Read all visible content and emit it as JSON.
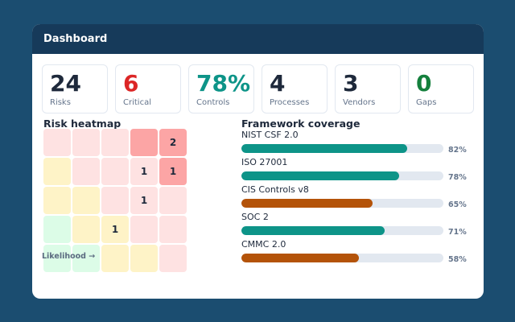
{
  "header": {
    "title": "Dashboard"
  },
  "stats": [
    {
      "value": "24",
      "label": "Risks",
      "color": "#1e293b"
    },
    {
      "value": "6",
      "label": "Critical",
      "color": "#dc2626"
    },
    {
      "value": "78%",
      "label": "Controls",
      "color": "#0d9488"
    },
    {
      "value": "4",
      "label": "Processes",
      "color": "#1e293b"
    },
    {
      "value": "3",
      "label": "Vendors",
      "color": "#1e293b"
    },
    {
      "value": "0",
      "label": "Gaps",
      "color": "#15803d"
    }
  ],
  "heatmap": {
    "title": "Risk heatmap",
    "axis_label": "Likelihood →",
    "colors": {
      "G": "#dcfce7",
      "Y": "#fef3c7",
      "P": "#fee2e2",
      "R": "#fca5a5"
    },
    "rows": [
      [
        [
          "P",
          ""
        ],
        [
          "P",
          ""
        ],
        [
          "P",
          ""
        ],
        [
          "R",
          ""
        ],
        [
          "R",
          "2"
        ]
      ],
      [
        [
          "Y",
          ""
        ],
        [
          "P",
          ""
        ],
        [
          "P",
          ""
        ],
        [
          "P",
          "1"
        ],
        [
          "R",
          "1"
        ]
      ],
      [
        [
          "Y",
          ""
        ],
        [
          "Y",
          ""
        ],
        [
          "P",
          ""
        ],
        [
          "P",
          "1"
        ],
        [
          "P",
          ""
        ]
      ],
      [
        [
          "G",
          ""
        ],
        [
          "Y",
          ""
        ],
        [
          "Y",
          "1"
        ],
        [
          "P",
          ""
        ],
        [
          "P",
          ""
        ]
      ],
      [
        [
          "G",
          ""
        ],
        [
          "G",
          ""
        ],
        [
          "Y",
          ""
        ],
        [
          "Y",
          ""
        ],
        [
          "P",
          ""
        ]
      ]
    ]
  },
  "frameworks": {
    "title": "Framework coverage",
    "items": [
      {
        "name": "NIST CSF 2.0",
        "percent": 82,
        "label": "82%",
        "color": "#0d9488"
      },
      {
        "name": "ISO 27001",
        "percent": 78,
        "label": "78%",
        "color": "#0d9488"
      },
      {
        "name": "CIS Controls v8",
        "percent": 65,
        "label": "65%",
        "color": "#b45309"
      },
      {
        "name": "SOC 2",
        "percent": 71,
        "label": "71%",
        "color": "#0d9488"
      },
      {
        "name": "CMMC 2.0",
        "percent": 58,
        "label": "58%",
        "color": "#b45309"
      }
    ]
  }
}
